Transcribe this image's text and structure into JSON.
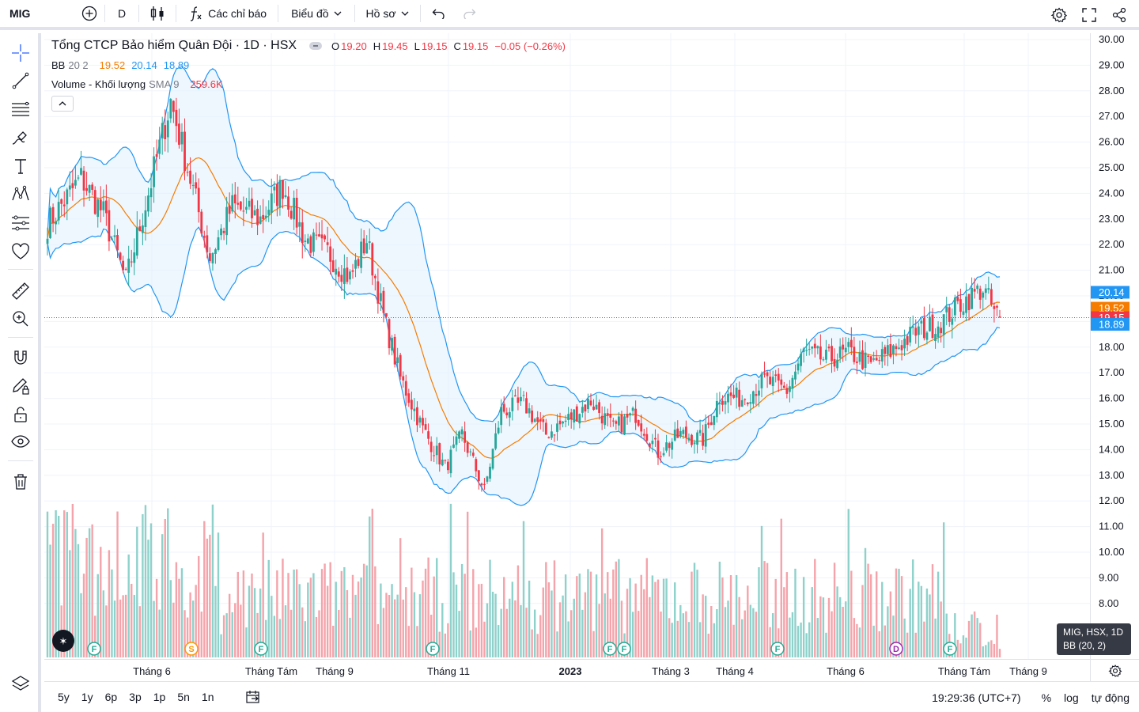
{
  "topbar": {
    "symbol": "MIG",
    "interval": "D",
    "indicators_label": "Các chỉ báo",
    "chart_label": "Biểu đồ",
    "profile_label": "Hồ sơ"
  },
  "legend": {
    "title": "Tổng CTCP Bảo hiểm Quân Đội · 1D · HSX",
    "o_label": "O",
    "o_value": "19.20",
    "h_label": "H",
    "h_value": "19.45",
    "l_label": "L",
    "l_value": "19.15",
    "c_label": "C",
    "c_value": "19.15",
    "change": "−0.05 (−0.26%)",
    "bb_name": "BB",
    "bb_params": "20 2",
    "bb_basis": "19.52",
    "bb_upper": "20.14",
    "bb_lower": "18.89",
    "vol_name": "Volume - Khối lượng",
    "vol_params": "SMA 9",
    "vol_value": "259.6K"
  },
  "colors": {
    "up": "#26a69a",
    "down": "#f23645",
    "bb_band": "#2196f3",
    "bb_basis": "#f57c00",
    "bb_fill": "#e3f2fd",
    "price_line": "#f23645"
  },
  "price_axis": {
    "ticks": [
      "30.00",
      "29.00",
      "28.00",
      "27.00",
      "26.00",
      "25.00",
      "24.00",
      "23.00",
      "22.00",
      "21.00",
      "20.00",
      "19.00",
      "18.00",
      "17.00",
      "16.00",
      "15.00",
      "14.00",
      "13.00",
      "12.00",
      "11.00",
      "10.00",
      "9.00",
      "8.00"
    ],
    "badges": [
      {
        "label": "20.14",
        "value": 20.14,
        "color": "#2196f3"
      },
      {
        "label": "19.52",
        "value": 19.52,
        "color": "#f57c00"
      },
      {
        "label": "19.15",
        "value": 19.15,
        "color": "#f23645"
      },
      {
        "label": "18.89",
        "value": 18.89,
        "color": "#2196f3"
      }
    ]
  },
  "time_axis": {
    "labels": [
      {
        "text": "Tháng 6",
        "bold": false
      },
      {
        "text": "Tháng Tám",
        "bold": false
      },
      {
        "text": "Tháng 9",
        "bold": false
      },
      {
        "text": "Tháng 11",
        "bold": false
      },
      {
        "text": "2023",
        "bold": true
      },
      {
        "text": "Tháng 3",
        "bold": false
      },
      {
        "text": "Tháng 4",
        "bold": false
      },
      {
        "text": "Tháng 6",
        "bold": false
      },
      {
        "text": "Tháng Tám",
        "bold": false
      },
      {
        "text": "Tháng 9",
        "bold": false
      }
    ]
  },
  "events": [
    {
      "letter": "F",
      "color": "#22ab94"
    },
    {
      "letter": "S",
      "color": "#ff9800"
    },
    {
      "letter": "F",
      "color": "#22ab94"
    },
    {
      "letter": "F",
      "color": "#22ab94"
    },
    {
      "letter": "F",
      "color": "#22ab94"
    },
    {
      "letter": "F",
      "color": "#22ab94"
    },
    {
      "letter": "F",
      "color": "#22ab94"
    },
    {
      "letter": "D",
      "color": "#9c27b0"
    },
    {
      "letter": "F",
      "color": "#22ab94"
    }
  ],
  "tooltip": {
    "line1": "MIG, HSX, 1D",
    "line2": "BB (20, 2)"
  },
  "bottombar": {
    "ranges": [
      "5y",
      "1y",
      "6p",
      "3p",
      "1p",
      "5n",
      "1n"
    ],
    "clock": "19:29:36 (UTC+7)",
    "percent": "%",
    "log": "log",
    "auto": "tự động"
  },
  "chart_data": {
    "type": "candlestick",
    "y_range": [
      8,
      30
    ],
    "bollinger": {
      "period": 20,
      "stddev": 2
    },
    "last": {
      "open": 19.2,
      "high": 19.45,
      "low": 19.15,
      "close": 19.15
    },
    "close_anchors": [
      {
        "x": 0,
        "y": 22.8
      },
      {
        "x": 12,
        "y": 24.6
      },
      {
        "x": 20,
        "y": 23.2
      },
      {
        "x": 28,
        "y": 20.6
      },
      {
        "x": 36,
        "y": 24.0
      },
      {
        "x": 44,
        "y": 27.6
      },
      {
        "x": 50,
        "y": 25.0
      },
      {
        "x": 58,
        "y": 21.5
      },
      {
        "x": 66,
        "y": 23.5
      },
      {
        "x": 76,
        "y": 23.0
      },
      {
        "x": 84,
        "y": 24.3
      },
      {
        "x": 92,
        "y": 22.2
      },
      {
        "x": 100,
        "y": 21.7
      },
      {
        "x": 108,
        "y": 20.7
      },
      {
        "x": 114,
        "y": 22.2
      },
      {
        "x": 120,
        "y": 19.2
      },
      {
        "x": 126,
        "y": 16.8
      },
      {
        "x": 134,
        "y": 14.8
      },
      {
        "x": 142,
        "y": 13.3
      },
      {
        "x": 148,
        "y": 14.6
      },
      {
        "x": 156,
        "y": 12.4
      },
      {
        "x": 162,
        "y": 15.5
      },
      {
        "x": 170,
        "y": 15.8
      },
      {
        "x": 178,
        "y": 14.6
      },
      {
        "x": 186,
        "y": 15.2
      },
      {
        "x": 194,
        "y": 15.9
      },
      {
        "x": 202,
        "y": 14.8
      },
      {
        "x": 210,
        "y": 15.4
      },
      {
        "x": 218,
        "y": 13.9
      },
      {
        "x": 226,
        "y": 14.6
      },
      {
        "x": 234,
        "y": 14.4
      },
      {
        "x": 240,
        "y": 16.1
      },
      {
        "x": 248,
        "y": 16.0
      },
      {
        "x": 256,
        "y": 16.7
      },
      {
        "x": 264,
        "y": 16.3
      },
      {
        "x": 270,
        "y": 17.8
      },
      {
        "x": 278,
        "y": 17.5
      },
      {
        "x": 286,
        "y": 17.8
      },
      {
        "x": 294,
        "y": 17.3
      },
      {
        "x": 302,
        "y": 17.9
      },
      {
        "x": 310,
        "y": 18.6
      },
      {
        "x": 318,
        "y": 18.9
      },
      {
        "x": 326,
        "y": 19.7
      },
      {
        "x": 334,
        "y": 20.3
      },
      {
        "x": 338,
        "y": 19.4
      },
      {
        "x": 340,
        "y": 19.15
      }
    ],
    "volume_max": "6"
  }
}
